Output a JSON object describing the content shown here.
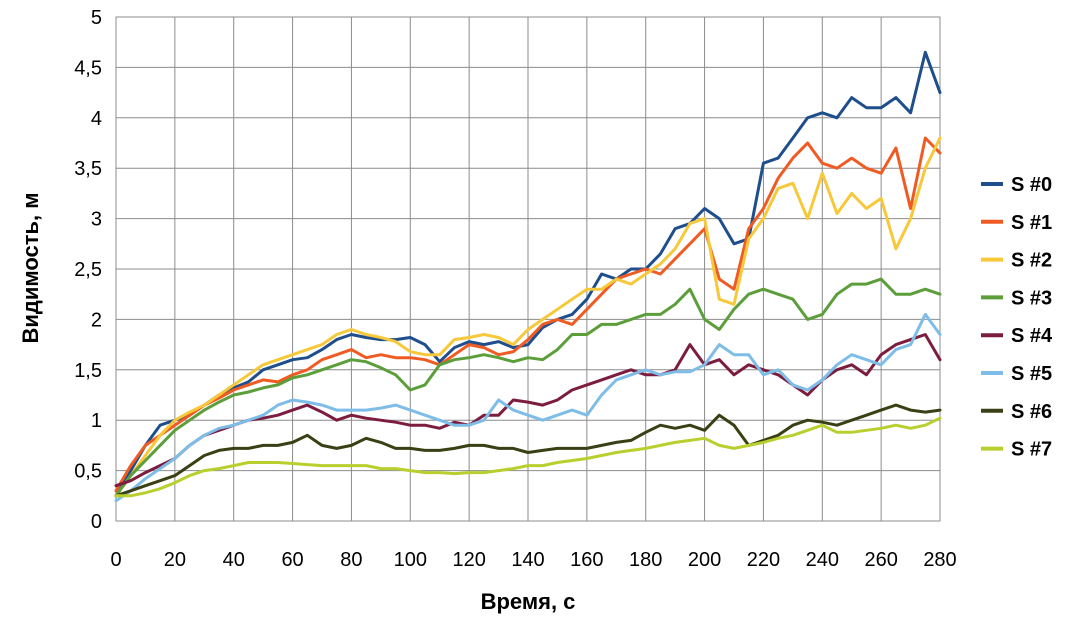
{
  "chart_data": {
    "type": "line",
    "title": "",
    "xlabel": "Время, с",
    "ylabel": "Видимость, м",
    "xlim": [
      0,
      280
    ],
    "ylim": [
      0,
      5
    ],
    "x_ticks": [
      "0",
      "20",
      "40",
      "60",
      "80",
      "100",
      "120",
      "140",
      "160",
      "180",
      "200",
      "220",
      "240",
      "260",
      "280"
    ],
    "y_ticks": [
      "0",
      "0,5",
      "1",
      "1,5",
      "2",
      "2,5",
      "3",
      "3,5",
      "4",
      "4,5",
      "5"
    ],
    "grid": true,
    "legend_position": "right",
    "x": [
      0,
      5,
      10,
      15,
      20,
      25,
      30,
      35,
      40,
      45,
      50,
      55,
      60,
      65,
      70,
      75,
      80,
      85,
      90,
      95,
      100,
      105,
      110,
      115,
      120,
      125,
      130,
      135,
      140,
      145,
      150,
      155,
      160,
      165,
      170,
      175,
      180,
      185,
      190,
      195,
      200,
      205,
      210,
      215,
      220,
      225,
      230,
      235,
      240,
      245,
      250,
      255,
      260,
      265,
      270,
      275,
      280
    ],
    "series": [
      {
        "name": "S #0",
        "color": "#1f4e8c",
        "values": [
          0.25,
          0.5,
          0.75,
          0.95,
          1.0,
          1.05,
          1.15,
          1.25,
          1.32,
          1.38,
          1.5,
          1.55,
          1.6,
          1.62,
          1.7,
          1.8,
          1.85,
          1.82,
          1.8,
          1.8,
          1.82,
          1.75,
          1.58,
          1.72,
          1.78,
          1.75,
          1.78,
          1.72,
          1.75,
          1.92,
          2.0,
          2.05,
          2.2,
          2.45,
          2.4,
          2.5,
          2.5,
          2.65,
          2.9,
          2.95,
          3.1,
          3.0,
          2.75,
          2.8,
          3.55,
          3.6,
          3.8,
          4.0,
          4.05,
          4.0,
          4.2,
          4.1,
          4.1,
          4.2,
          4.05,
          4.65,
          4.25
        ]
      },
      {
        "name": "S #1",
        "color": "#ef5b23",
        "values": [
          0.3,
          0.55,
          0.75,
          0.85,
          0.95,
          1.05,
          1.15,
          1.22,
          1.3,
          1.35,
          1.4,
          1.38,
          1.45,
          1.5,
          1.6,
          1.65,
          1.7,
          1.62,
          1.65,
          1.62,
          1.62,
          1.6,
          1.55,
          1.65,
          1.75,
          1.72,
          1.65,
          1.68,
          1.8,
          1.95,
          2.0,
          1.95,
          2.1,
          2.25,
          2.4,
          2.45,
          2.5,
          2.45,
          2.6,
          2.75,
          2.9,
          2.4,
          2.3,
          2.9,
          3.1,
          3.4,
          3.6,
          3.75,
          3.55,
          3.5,
          3.6,
          3.5,
          3.45,
          3.7,
          3.1,
          3.8,
          3.65
        ]
      },
      {
        "name": "S #2",
        "color": "#f7c83a",
        "values": [
          0.25,
          0.45,
          0.65,
          0.85,
          1.0,
          1.08,
          1.15,
          1.25,
          1.35,
          1.45,
          1.55,
          1.6,
          1.65,
          1.7,
          1.75,
          1.85,
          1.9,
          1.85,
          1.82,
          1.78,
          1.68,
          1.65,
          1.65,
          1.8,
          1.82,
          1.85,
          1.82,
          1.75,
          1.9,
          2.0,
          2.1,
          2.2,
          2.3,
          2.3,
          2.4,
          2.35,
          2.45,
          2.55,
          2.7,
          2.95,
          3.0,
          2.2,
          2.15,
          2.8,
          3.0,
          3.3,
          3.35,
          3.0,
          3.45,
          3.05,
          3.25,
          3.1,
          3.2,
          2.7,
          3.0,
          3.5,
          3.8
        ]
      },
      {
        "name": "S #3",
        "color": "#5b9e3a",
        "values": [
          0.25,
          0.45,
          0.6,
          0.75,
          0.9,
          1.0,
          1.1,
          1.18,
          1.25,
          1.28,
          1.32,
          1.35,
          1.42,
          1.45,
          1.5,
          1.55,
          1.6,
          1.58,
          1.52,
          1.45,
          1.3,
          1.35,
          1.55,
          1.6,
          1.62,
          1.65,
          1.62,
          1.58,
          1.62,
          1.6,
          1.7,
          1.85,
          1.85,
          1.95,
          1.95,
          2.0,
          2.05,
          2.05,
          2.15,
          2.3,
          2.0,
          1.9,
          2.1,
          2.25,
          2.3,
          2.25,
          2.2,
          2.0,
          2.05,
          2.25,
          2.35,
          2.35,
          2.4,
          2.25,
          2.25,
          2.3,
          2.25
        ]
      },
      {
        "name": "S #4",
        "color": "#7c1d3f",
        "values": [
          0.35,
          0.4,
          0.48,
          0.55,
          0.62,
          0.75,
          0.85,
          0.9,
          0.95,
          1.0,
          1.02,
          1.05,
          1.1,
          1.15,
          1.08,
          1.0,
          1.05,
          1.02,
          1.0,
          0.98,
          0.95,
          0.95,
          0.92,
          0.98,
          0.95,
          1.05,
          1.05,
          1.2,
          1.18,
          1.15,
          1.2,
          1.3,
          1.35,
          1.4,
          1.45,
          1.5,
          1.45,
          1.45,
          1.5,
          1.75,
          1.55,
          1.6,
          1.45,
          1.55,
          1.5,
          1.45,
          1.35,
          1.25,
          1.4,
          1.5,
          1.55,
          1.45,
          1.65,
          1.75,
          1.8,
          1.85,
          1.6
        ]
      },
      {
        "name": "S #5",
        "color": "#7dbde8",
        "values": [
          0.2,
          0.3,
          0.42,
          0.52,
          0.62,
          0.75,
          0.85,
          0.92,
          0.95,
          1.0,
          1.05,
          1.15,
          1.2,
          1.18,
          1.15,
          1.1,
          1.1,
          1.1,
          1.12,
          1.15,
          1.1,
          1.05,
          1.0,
          0.95,
          0.95,
          1.0,
          1.2,
          1.1,
          1.05,
          1.0,
          1.05,
          1.1,
          1.05,
          1.25,
          1.4,
          1.45,
          1.5,
          1.45,
          1.48,
          1.48,
          1.55,
          1.75,
          1.65,
          1.65,
          1.45,
          1.5,
          1.35,
          1.3,
          1.4,
          1.55,
          1.65,
          1.6,
          1.55,
          1.7,
          1.75,
          2.05,
          1.85
        ]
      },
      {
        "name": "S #6",
        "color": "#3a3f14",
        "values": [
          0.25,
          0.3,
          0.35,
          0.4,
          0.45,
          0.55,
          0.65,
          0.7,
          0.72,
          0.72,
          0.75,
          0.75,
          0.78,
          0.85,
          0.75,
          0.72,
          0.75,
          0.82,
          0.78,
          0.72,
          0.72,
          0.7,
          0.7,
          0.72,
          0.75,
          0.75,
          0.72,
          0.72,
          0.68,
          0.7,
          0.72,
          0.72,
          0.72,
          0.75,
          0.78,
          0.8,
          0.88,
          0.95,
          0.92,
          0.95,
          0.9,
          1.05,
          0.95,
          0.75,
          0.8,
          0.85,
          0.95,
          1.0,
          0.98,
          0.95,
          1.0,
          1.05,
          1.1,
          1.15,
          1.1,
          1.08,
          1.1
        ]
      },
      {
        "name": "S #7",
        "color": "#b9cf2e",
        "values": [
          0.25,
          0.25,
          0.28,
          0.32,
          0.38,
          0.45,
          0.5,
          0.52,
          0.55,
          0.58,
          0.58,
          0.58,
          0.57,
          0.56,
          0.55,
          0.55,
          0.55,
          0.55,
          0.52,
          0.52,
          0.5,
          0.48,
          0.48,
          0.47,
          0.48,
          0.48,
          0.5,
          0.52,
          0.55,
          0.55,
          0.58,
          0.6,
          0.62,
          0.65,
          0.68,
          0.7,
          0.72,
          0.75,
          0.78,
          0.8,
          0.82,
          0.75,
          0.72,
          0.75,
          0.78,
          0.82,
          0.85,
          0.9,
          0.95,
          0.88,
          0.88,
          0.9,
          0.92,
          0.95,
          0.92,
          0.95,
          1.02
        ]
      }
    ]
  }
}
